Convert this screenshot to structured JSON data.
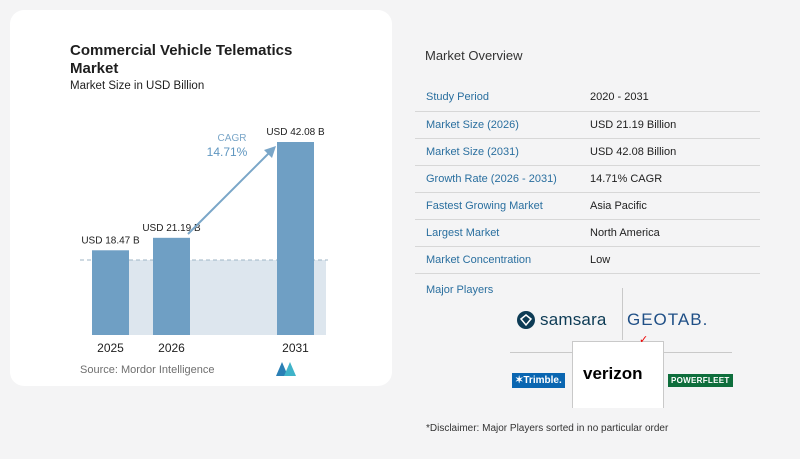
{
  "chart": {
    "title": "Commercial Vehicle Telematics Market",
    "subtitle": "Market Size in USD Billion",
    "source": "Source:  Mordor Intelligence",
    "cagr_label": "CAGR",
    "cagr_value": "14.71%"
  },
  "chart_data": {
    "type": "bar",
    "categories": [
      "2025",
      "2026",
      "2031"
    ],
    "values": [
      18.47,
      21.19,
      42.08
    ],
    "value_labels": [
      "USD 18.47 B",
      "USD 21.19 B",
      "USD 42.08 B"
    ],
    "title": "Commercial Vehicle Telematics Market",
    "subtitle": "Market Size in USD Billion",
    "ylim": [
      0,
      45
    ],
    "colors": {
      "bar": "#6f9fc4",
      "baseline_band": "#dde6ee",
      "arrow": "#7aa6c8"
    }
  },
  "overview": {
    "title": "Market Overview",
    "rows": [
      {
        "label": "Study Period",
        "value": "2020 - 2031"
      },
      {
        "label": "Market Size (2026)",
        "value": "USD 21.19 Billion"
      },
      {
        "label": "Market Size (2031)",
        "value": "USD 42.08 Billion"
      },
      {
        "label": "Growth Rate (2026 - 2031)",
        "value": "14.71% CAGR"
      },
      {
        "label": "Fastest Growing Market",
        "value": "Asia Pacific"
      },
      {
        "label": "Largest Market",
        "value": "North America"
      },
      {
        "label": "Market Concentration",
        "value": "Low"
      }
    ],
    "players_title": "Major Players",
    "players": {
      "samsara": "samsara",
      "geotab": "GEOTAB.",
      "trimble": "✶Trimble.",
      "verizon": "verizon",
      "powerfleet": "POWERFLEET"
    },
    "disclaimer": "*Disclaimer: Major Players sorted in no particular order"
  }
}
